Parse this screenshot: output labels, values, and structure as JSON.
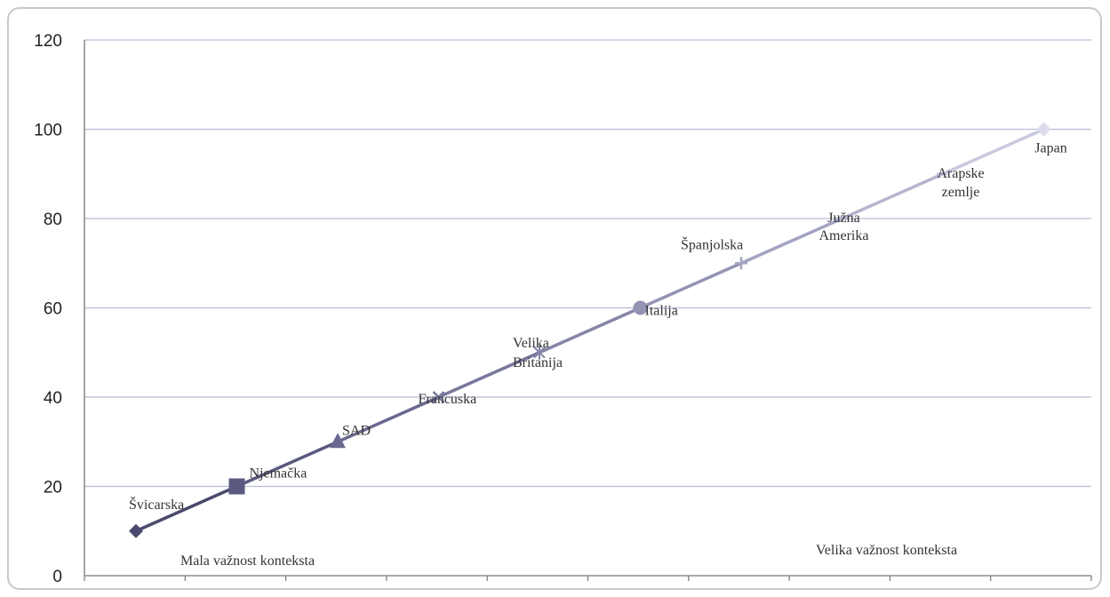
{
  "chart_data": {
    "type": "line",
    "ylim": [
      0,
      120
    ],
    "yticks": [
      "0",
      "20",
      "40",
      "60",
      "80",
      "100",
      "120"
    ],
    "grid": true,
    "points": [
      {
        "label": "Švicarska",
        "y": 10,
        "marker": "diamond",
        "color": "#4a4a6e"
      },
      {
        "label": "Njemačka",
        "y": 20,
        "marker": "square",
        "color": "#5a5a80"
      },
      {
        "label": "SAD",
        "y": 30,
        "marker": "triangle",
        "color": "#6a6a90"
      },
      {
        "label": "Francuska",
        "y": 40,
        "marker": "x",
        "color": "#77779c"
      },
      {
        "label": "Velika Britanija",
        "y": 50,
        "marker": "star",
        "color": "#8585a8"
      },
      {
        "label": "Italija",
        "y": 60,
        "marker": "circle",
        "color": "#9393b4"
      },
      {
        "label": "Španjolska",
        "y": 70,
        "marker": "plus",
        "color": "#a3a3c2"
      },
      {
        "label": "Južna Amerika",
        "y": 80,
        "marker": "dash",
        "color": "#b5b5d0"
      },
      {
        "label": "Arapske zemlje",
        "y": 90,
        "marker": "dash",
        "color": "#c8c8de"
      },
      {
        "label": "Japan",
        "y": 100,
        "marker": "diamond",
        "color": "#dcdcec"
      }
    ],
    "annotations": [
      "Mala važnost konteksta",
      "Velika važnost konteksta"
    ]
  }
}
